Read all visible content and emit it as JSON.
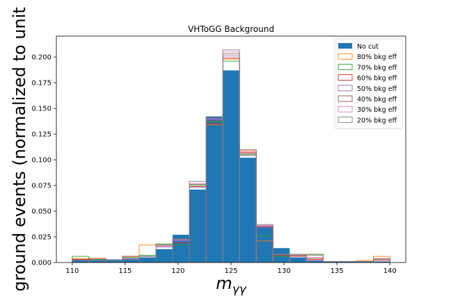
{
  "chart_data": {
    "type": "histogram",
    "title": "VHToGG Background",
    "xlabel": "m_{γγ}",
    "xlabel_parts": {
      "base": "m",
      "sub": "γγ"
    },
    "ylabel": "ground events (normalized to unit",
    "xlim": [
      108.5,
      141.5
    ],
    "ylim": [
      0,
      0.2204
    ],
    "xticks": [
      110,
      115,
      120,
      125,
      130,
      135,
      140
    ],
    "xtick_labels": [
      "110",
      "115",
      "120",
      "125",
      "130",
      "135",
      "140"
    ],
    "yticks": [
      0,
      0.025,
      0.05,
      0.075,
      0.1,
      0.125,
      0.15,
      0.175,
      0.2
    ],
    "ytick_labels": [
      "0.000",
      "0.025",
      "0.050",
      "0.075",
      "0.100",
      "0.125",
      "0.150",
      "0.175",
      "0.200"
    ],
    "bin_edges": [
      110,
      111.58,
      113.16,
      114.74,
      116.32,
      117.9,
      119.48,
      121.06,
      122.64,
      124.22,
      125.8,
      127.38,
      128.96,
      130.54,
      132.12,
      133.7,
      135.28,
      136.86,
      138.44,
      140
    ],
    "legend_position": "top-right",
    "series": [
      {
        "name": "No cut",
        "style": "filled",
        "color": "#1f77b4",
        "values": [
          0.003,
          0.003,
          0.003,
          0.004,
          0.005,
          0.013,
          0.027,
          0.071,
          0.142,
          0.187,
          0.102,
          0.035,
          0.014,
          0.005,
          0.002,
          0.001,
          0.001,
          0.001,
          0.001
        ]
      },
      {
        "name": "80% bkg eff",
        "style": "step",
        "color": "#ff7f0e",
        "values": [
          0.004,
          0.004,
          0.002,
          0.006,
          0.017,
          0.018,
          0.023,
          0.073,
          0.134,
          0.198,
          0.109,
          0.021,
          0.007,
          0.007,
          0.008,
          0.001,
          0.001,
          0.002,
          0.006
        ]
      },
      {
        "name": "70% bkg eff",
        "style": "step",
        "color": "#2ca02c",
        "values": [
          0.006,
          0.003,
          0.002,
          0.005,
          0.007,
          0.018,
          0.017,
          0.075,
          0.137,
          0.196,
          0.105,
          0.026,
          0.006,
          0.007,
          0.008,
          0.001,
          0.001,
          0.001,
          0.003
        ]
      },
      {
        "name": "60% bkg eff",
        "style": "step",
        "color": "#d62728",
        "values": [
          0.003,
          0.004,
          0.002,
          0.006,
          0.006,
          0.016,
          0.019,
          0.074,
          0.135,
          0.199,
          0.107,
          0.035,
          0.007,
          0.006,
          0.003,
          0.001,
          0.001,
          0.001,
          0.002
        ]
      },
      {
        "name": "50% bkg eff",
        "style": "step",
        "color": "#9467bd",
        "values": [
          0.002,
          0.002,
          0.002,
          0.004,
          0.006,
          0.015,
          0.021,
          0.073,
          0.139,
          0.201,
          0.104,
          0.034,
          0.008,
          0.007,
          0.002,
          0.001,
          0.001,
          0.001,
          0.003
        ]
      },
      {
        "name": "40% bkg eff",
        "style": "step",
        "color": "#8c564b",
        "values": [
          0.002,
          0.002,
          0.002,
          0.003,
          0.006,
          0.017,
          0.022,
          0.076,
          0.138,
          0.203,
          0.106,
          0.036,
          0.007,
          0.007,
          0.004,
          0.001,
          0.001,
          0.001,
          0.004
        ]
      },
      {
        "name": "30% bkg eff",
        "style": "step",
        "color": "#e377c2",
        "values": [
          0.002,
          0.002,
          0.002,
          0.003,
          0.006,
          0.016,
          0.022,
          0.077,
          0.14,
          0.205,
          0.108,
          0.036,
          0.008,
          0.008,
          0.005,
          0.001,
          0.001,
          0.001,
          0.003
        ]
      },
      {
        "name": "20% bkg eff",
        "style": "step",
        "color": "#7f7f7f",
        "values": [
          0.002,
          0.002,
          0.002,
          0.003,
          0.006,
          0.017,
          0.023,
          0.079,
          0.142,
          0.207,
          0.11,
          0.037,
          0.008,
          0.008,
          0.007,
          0.001,
          0.001,
          0.001,
          0.003
        ]
      }
    ]
  }
}
